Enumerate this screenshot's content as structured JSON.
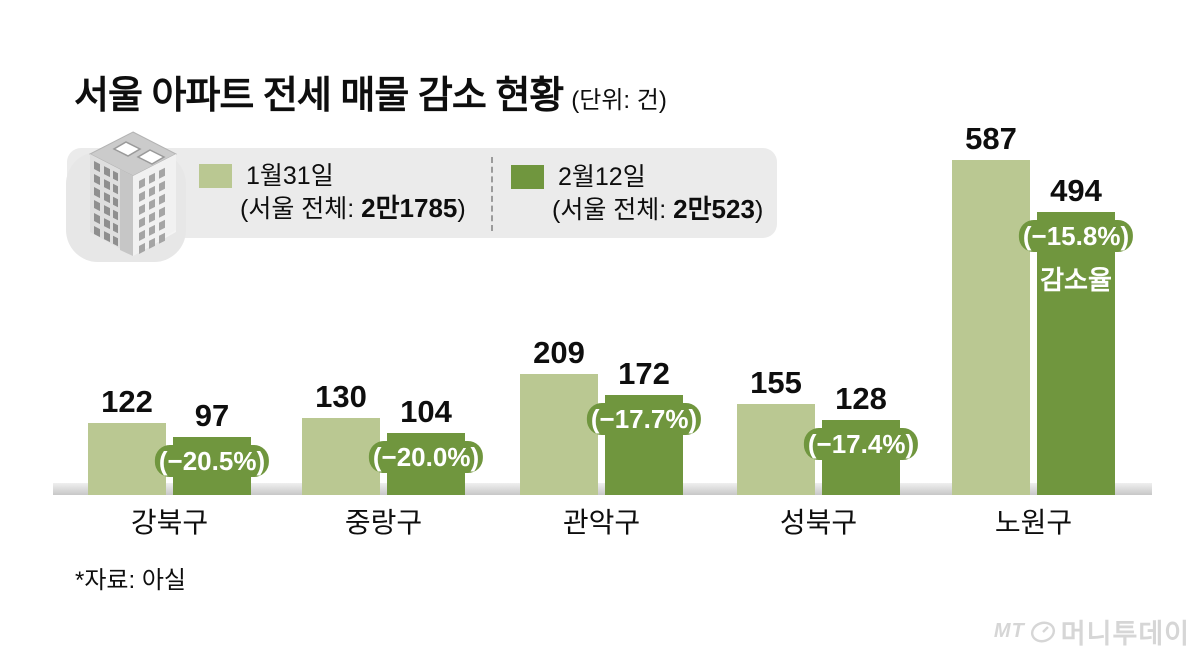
{
  "title": {
    "text": "서울 아파트 전세 매물 감소 현황",
    "unit": "(단위: 건)"
  },
  "legend": {
    "series1": {
      "label": "1월31일",
      "total_prefix": "(서울 전체: ",
      "total": "2만1785",
      "total_suffix": ")",
      "color": "#bac892"
    },
    "series2": {
      "label": "2월12일",
      "total_prefix": "(서울 전체: ",
      "total": "2만523",
      "total_suffix": ")",
      "color": "#70963e"
    }
  },
  "chart_data": {
    "type": "bar",
    "title": "서울 아파트 전세 매물 감소 현황",
    "unit_note": "(단위: 건)",
    "categories": [
      "강북구",
      "중랑구",
      "관악구",
      "성북구",
      "노원구"
    ],
    "series": [
      {
        "name": "1월31일",
        "values": [
          122,
          130,
          209,
          155,
          587
        ],
        "color": "#bac892"
      },
      {
        "name": "2월12일",
        "values": [
          97,
          104,
          172,
          128,
          494
        ],
        "color": "#70963e"
      }
    ],
    "pct_change": [
      "(−20.5%)",
      "(−20.0%)",
      "(−17.7%)",
      "(−17.4%)",
      "(−15.8%)"
    ],
    "pct_note": "감소율",
    "pct_note_category_index": 4,
    "ylim": [
      0,
      600
    ],
    "grid": false,
    "legend_position": "top",
    "value_labels": true
  },
  "source": "*자료: 아실",
  "logo": {
    "mt": "MT",
    "name": "머니투데이"
  }
}
